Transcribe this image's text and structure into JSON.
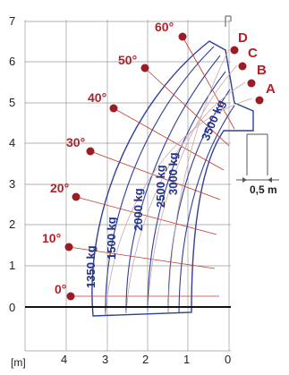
{
  "colors": {
    "envelope": "#2f3f9a",
    "radial": "#c0392b",
    "dot": "#9b1c24",
    "grid": "#9a9a9a",
    "axis": "#111111",
    "lines": "#c8a8a8"
  },
  "x_axis": {
    "unit": "[m]",
    "ticks": [
      "4",
      "3",
      "2",
      "1",
      "0"
    ]
  },
  "y_axis": {
    "ticks": [
      "0",
      "1",
      "2",
      "3",
      "4",
      "5",
      "6",
      "7"
    ]
  },
  "angles": [
    "0°",
    "10°",
    "20°",
    "30°",
    "40°",
    "50°",
    "60°"
  ],
  "extensions": [
    "A",
    "B",
    "C",
    "D"
  ],
  "loads": [
    "1350 kg",
    "1500 kg",
    "2000 kg",
    "2500 kg",
    "3000 kg",
    "3500 kg"
  ],
  "scale": {
    "label": "0,5 m",
    "value_m": 0.5
  }
}
